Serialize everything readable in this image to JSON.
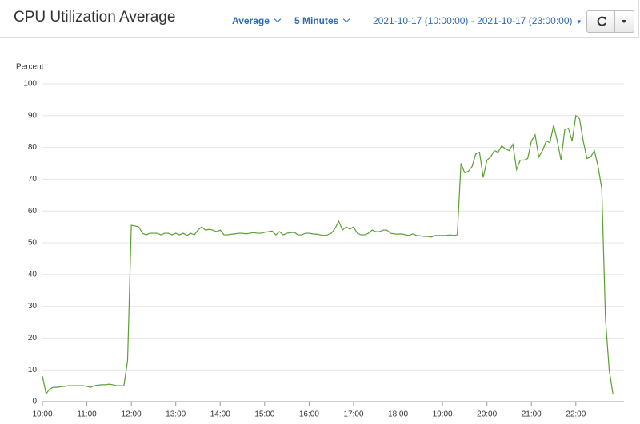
{
  "header": {
    "title": "CPU Utilization Average",
    "statistic": "Average",
    "period": "5 Minutes",
    "range": "2021-10-17 (10:00:00) - 2021-10-17 (23:00:00)"
  },
  "chart_data": {
    "type": "line",
    "ylabel": "Percent",
    "color": "#5b9e32",
    "grid": true,
    "xlim": [
      600,
      1385
    ],
    "ylim": [
      0,
      100
    ],
    "yticks": [
      0,
      10,
      20,
      30,
      40,
      50,
      60,
      70,
      80,
      90,
      100
    ],
    "xticks": [
      {
        "value": 600,
        "label": "10:00"
      },
      {
        "value": 660,
        "label": "11:00"
      },
      {
        "value": 720,
        "label": "12:00"
      },
      {
        "value": 780,
        "label": "13:00"
      },
      {
        "value": 840,
        "label": "14:00"
      },
      {
        "value": 900,
        "label": "15:00"
      },
      {
        "value": 960,
        "label": "16:00"
      },
      {
        "value": 1020,
        "label": "17:00"
      },
      {
        "value": 1080,
        "label": "18:00"
      },
      {
        "value": 1140,
        "label": "19:00"
      },
      {
        "value": 1200,
        "label": "20:00"
      },
      {
        "value": 1260,
        "label": "21:00"
      },
      {
        "value": 1320,
        "label": "22:00"
      }
    ],
    "x": [
      600,
      605,
      610,
      615,
      620,
      625,
      630,
      635,
      640,
      645,
      650,
      655,
      660,
      665,
      670,
      675,
      680,
      685,
      690,
      695,
      700,
      705,
      710,
      715,
      720,
      725,
      730,
      735,
      740,
      745,
      750,
      755,
      760,
      765,
      770,
      775,
      780,
      785,
      790,
      795,
      800,
      805,
      810,
      815,
      820,
      825,
      830,
      835,
      840,
      845,
      850,
      855,
      860,
      865,
      870,
      875,
      880,
      885,
      890,
      895,
      900,
      905,
      910,
      915,
      920,
      925,
      930,
      935,
      940,
      945,
      950,
      955,
      960,
      965,
      970,
      975,
      980,
      985,
      990,
      995,
      1000,
      1005,
      1010,
      1015,
      1020,
      1025,
      1030,
      1035,
      1040,
      1045,
      1050,
      1055,
      1060,
      1065,
      1070,
      1075,
      1080,
      1085,
      1090,
      1095,
      1100,
      1105,
      1110,
      1115,
      1120,
      1125,
      1130,
      1135,
      1140,
      1145,
      1150,
      1155,
      1160,
      1165,
      1170,
      1175,
      1180,
      1185,
      1190,
      1195,
      1200,
      1205,
      1210,
      1215,
      1220,
      1225,
      1230,
      1235,
      1240,
      1245,
      1250,
      1255,
      1260,
      1265,
      1270,
      1275,
      1280,
      1285,
      1290,
      1295,
      1300,
      1305,
      1310,
      1315,
      1320,
      1325,
      1330,
      1335,
      1340,
      1345,
      1350,
      1355,
      1360,
      1365,
      1370
    ],
    "values": [
      8,
      2.5,
      4,
      4.5,
      4.5,
      4.7,
      4.8,
      5,
      5,
      5,
      5,
      5,
      4.8,
      4.5,
      5,
      5.2,
      5.3,
      5.3,
      5.5,
      5.3,
      5,
      5,
      5,
      13,
      55.5,
      55.3,
      55,
      53,
      52.5,
      53,
      53,
      53,
      52.5,
      53,
      53,
      52.5,
      53,
      52.5,
      53,
      52.3,
      53,
      52.5,
      54,
      55,
      54,
      54.2,
      54,
      53.5,
      54,
      52.5,
      52.5,
      52.7,
      52.8,
      53,
      53,
      52.8,
      53,
      53.2,
      53,
      53,
      53.3,
      53.5,
      53.7,
      52.5,
      53.5,
      52.5,
      53,
      53.2,
      53.3,
      52.5,
      52.5,
      53,
      53,
      52.8,
      52.7,
      52.5,
      52.3,
      52.5,
      53,
      54.5,
      56.8,
      54,
      55,
      54.3,
      55,
      53,
      52.5,
      52.5,
      53,
      54,
      53.5,
      53.5,
      54,
      54,
      53,
      52.8,
      52.7,
      52.8,
      52.5,
      52.3,
      52.8,
      52.3,
      52.2,
      52,
      52,
      51.8,
      52.3,
      52.3,
      52.3,
      52.3,
      52.5,
      52.3,
      52.5,
      75,
      72,
      72.5,
      74,
      78,
      78.5,
      70.5,
      76,
      77,
      79,
      78.5,
      80.5,
      79.5,
      79,
      81,
      73,
      76,
      76,
      76.5,
      82,
      84,
      77,
      79,
      82,
      81.5,
      87,
      82,
      76,
      85.5,
      86,
      82,
      90,
      89,
      82,
      76.5,
      77,
      79,
      74,
      67,
      26,
      10,
      2.5
    ]
  }
}
